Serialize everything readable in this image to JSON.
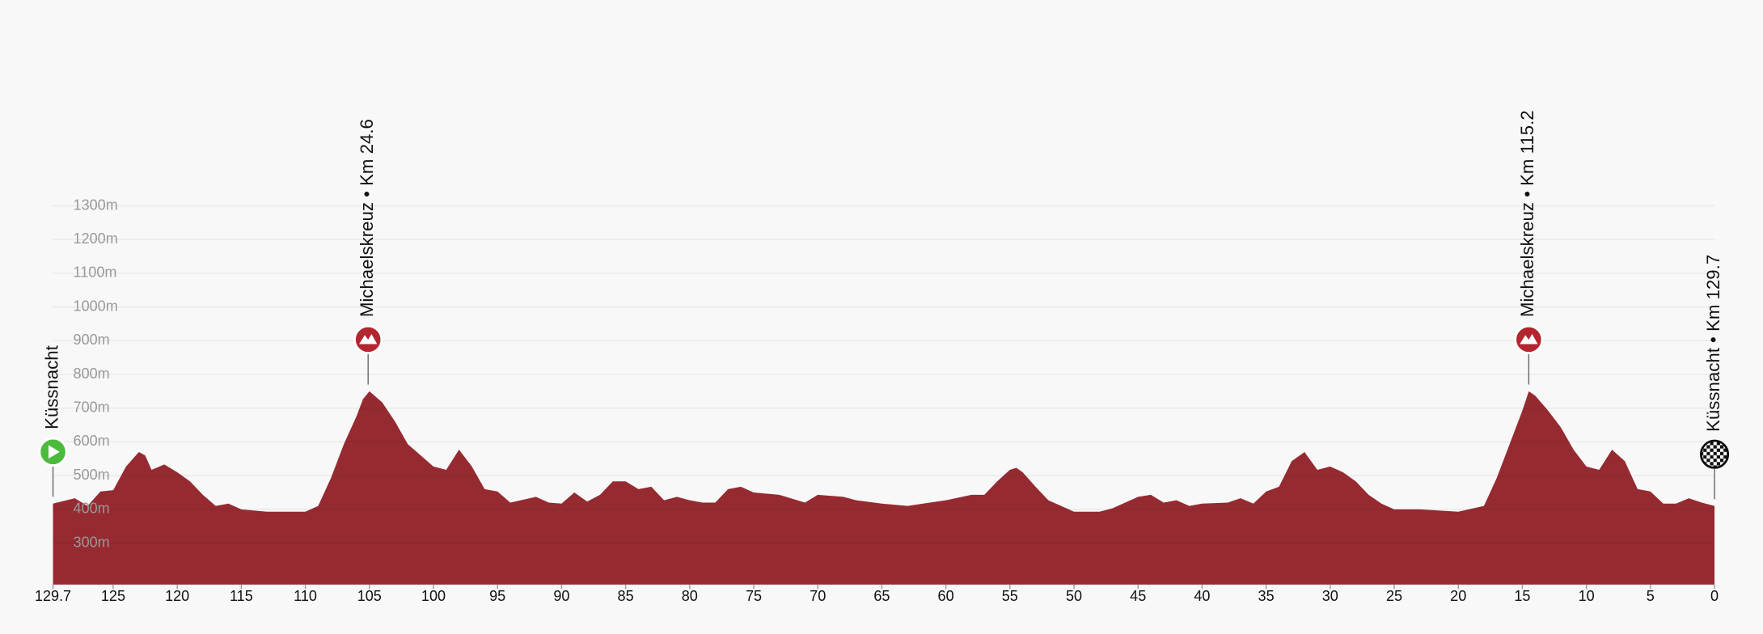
{
  "chart_data": {
    "type": "area",
    "color": "#962a31",
    "x_reversed": true,
    "xlim": [
      129.7,
      0
    ],
    "xticks": [
      129.7,
      125,
      120,
      115,
      110,
      105,
      100,
      95,
      90,
      85,
      80,
      75,
      70,
      65,
      60,
      55,
      50,
      45,
      40,
      35,
      30,
      25,
      20,
      15,
      10,
      5,
      0
    ],
    "ylim": [
      177,
      1320
    ],
    "yticks": [
      {
        "value": 300,
        "label": "300m"
      },
      {
        "value": 400,
        "label": "400m"
      },
      {
        "value": 500,
        "label": "500m"
      },
      {
        "value": 600,
        "label": "600m"
      },
      {
        "value": 700,
        "label": "700m"
      },
      {
        "value": 800,
        "label": "800m"
      },
      {
        "value": 900,
        "label": "900m"
      },
      {
        "value": 1000,
        "label": "1000m"
      },
      {
        "value": 1100,
        "label": "1100m"
      },
      {
        "value": 1200,
        "label": "1200m"
      },
      {
        "value": 1300,
        "label": "1300m"
      }
    ],
    "grid": true,
    "x": [
      129.7,
      128,
      127,
      126,
      125,
      124,
      123,
      122.5,
      122,
      121,
      120,
      119,
      118,
      117,
      116,
      115,
      113,
      110,
      109,
      108,
      107,
      106,
      105.5,
      105,
      104,
      103,
      102,
      101,
      100,
      99,
      98,
      97,
      96,
      95,
      94,
      92,
      91,
      90,
      89,
      88,
      87,
      86,
      85,
      84,
      83,
      82,
      81,
      80,
      79,
      78,
      77,
      76,
      75,
      73,
      71,
      70,
      68,
      67,
      65,
      63,
      60,
      58,
      57,
      56,
      55,
      54.5,
      54,
      53,
      52,
      51,
      50,
      48,
      47,
      46,
      45,
      44,
      43,
      42,
      41,
      40,
      38,
      37,
      36,
      35,
      34,
      33,
      32,
      31,
      30,
      29,
      28,
      27,
      26,
      25,
      23,
      20,
      18,
      17,
      16,
      15,
      14.5,
      14,
      13,
      12,
      11,
      10,
      9,
      8,
      7,
      6,
      5,
      4,
      3,
      2,
      1,
      0
    ],
    "values": [
      417,
      433,
      410,
      453,
      457,
      527,
      570,
      560,
      517,
      533,
      510,
      483,
      443,
      410,
      417,
      400,
      393,
      393,
      410,
      493,
      593,
      677,
      727,
      750,
      717,
      660,
      593,
      560,
      527,
      517,
      577,
      527,
      460,
      453,
      420,
      437,
      420,
      417,
      450,
      423,
      443,
      483,
      483,
      460,
      467,
      427,
      437,
      427,
      420,
      420,
      460,
      467,
      450,
      443,
      420,
      443,
      437,
      427,
      417,
      410,
      427,
      443,
      443,
      483,
      517,
      523,
      510,
      467,
      427,
      410,
      393,
      393,
      403,
      420,
      437,
      443,
      420,
      427,
      410,
      417,
      420,
      433,
      417,
      453,
      467,
      543,
      570,
      517,
      527,
      510,
      483,
      443,
      417,
      400,
      400,
      393,
      410,
      493,
      593,
      693,
      750,
      737,
      693,
      643,
      577,
      527,
      517,
      577,
      543,
      460,
      453,
      417,
      417,
      433,
      420,
      410
    ],
    "annotations": [
      {
        "label": "Küssnacht",
        "x": 129.7,
        "icon": "start"
      },
      {
        "label": "Michaelskreuz • Km 24.6",
        "x": 105.1,
        "icon": "climb"
      },
      {
        "label": "Michaelskreuz • Km 115.2",
        "x": 14.5,
        "icon": "climb"
      },
      {
        "label": "Küssnacht • Km 129.7",
        "x": 0,
        "icon": "finish"
      }
    ]
  }
}
